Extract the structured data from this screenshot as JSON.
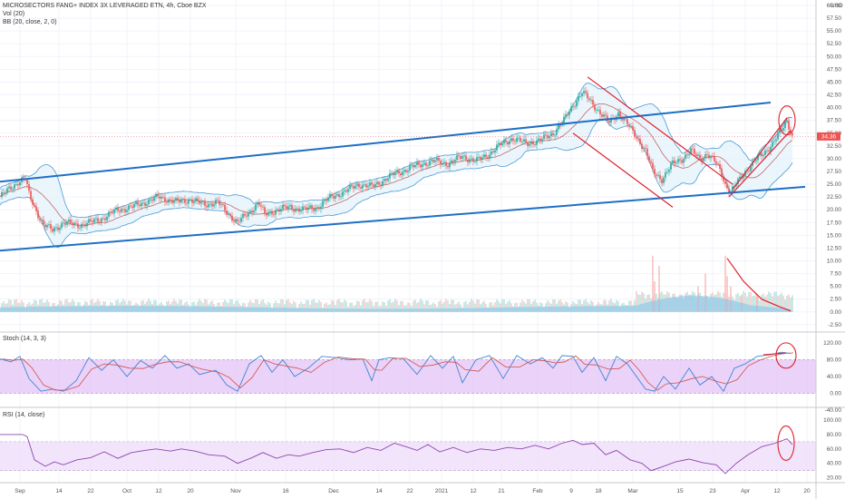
{
  "header": {
    "title": "MICROSECTORS FANG+ INDEX 3X LEVERAGED ETN, 4h, Cboe BZX",
    "vol_label": "Vol (20)",
    "bb_label": "BB (20, close, 2, 0)",
    "currency": "USD"
  },
  "stoch_label": "Stoch (14, 3, 3)",
  "rsi_label": "RSI (14, close)",
  "last_price": "34.36",
  "colors": {
    "up": "#26a69a",
    "down": "#ef5350",
    "channel": "#1e6fc5",
    "annotation": "#e0212b",
    "bb": "#4a9bd5",
    "ma": "#c46a6a",
    "stoch_k": "#3d86d6",
    "stoch_d": "#d1504a",
    "rsi": "#8e44ad",
    "band_fill": "#e3bff5",
    "volume_ma": "#7ec2ea"
  },
  "chart_data": {
    "type": "candlestick",
    "x_ticks": [
      "Sep",
      "14",
      "22",
      "Oct",
      "12",
      "20",
      "Nov",
      "16",
      "Dec",
      "14",
      "22",
      "2021",
      "12",
      "21",
      "Feb",
      "9",
      "18",
      "Mar",
      "15",
      "23",
      "Apr",
      "12",
      "20"
    ],
    "price_axis": [
      "60.00",
      "57.50",
      "55.00",
      "52.50",
      "50.00",
      "47.50",
      "45.00",
      "42.50",
      "40.00",
      "37.50",
      "35.00",
      "32.50",
      "30.00",
      "27.50",
      "25.00",
      "22.50",
      "20.00",
      "17.50",
      "15.00",
      "12.50",
      "10.00",
      "7.50",
      "5.00",
      "2.50",
      "0.00",
      "-2.50"
    ],
    "stoch_axis": [
      "120.00",
      "80.00",
      "40.00",
      "0.00",
      "-40.00"
    ],
    "rsi_axis": [
      "100.00",
      "80.00",
      "60.00",
      "40.00",
      "20.00"
    ],
    "price_path": [
      [
        0,
        22.5
      ],
      [
        10,
        24
      ],
      [
        20,
        25.5
      ],
      [
        28,
        26
      ],
      [
        32,
        23
      ],
      [
        38,
        20.5
      ],
      [
        48,
        17
      ],
      [
        58,
        16
      ],
      [
        70,
        17.5
      ],
      [
        85,
        17
      ],
      [
        100,
        17.5
      ],
      [
        115,
        18.5
      ],
      [
        130,
        20
      ],
      [
        145,
        20.5
      ],
      [
        160,
        21.5
      ],
      [
        175,
        22.5
      ],
      [
        185,
        22
      ],
      [
        195,
        21.5
      ],
      [
        210,
        22
      ],
      [
        225,
        21
      ],
      [
        240,
        21.5
      ],
      [
        250,
        19.5
      ],
      [
        262,
        17.5
      ],
      [
        275,
        19.5
      ],
      [
        285,
        21.5
      ],
      [
        292,
        19
      ],
      [
        305,
        20
      ],
      [
        320,
        20.5
      ],
      [
        335,
        20
      ],
      [
        350,
        20.5
      ],
      [
        365,
        22.5
      ],
      [
        380,
        23.5
      ],
      [
        395,
        25
      ],
      [
        410,
        24.5
      ],
      [
        420,
        25.5
      ],
      [
        435,
        27
      ],
      [
        450,
        28
      ],
      [
        465,
        29
      ],
      [
        480,
        29.5
      ],
      [
        495,
        29
      ],
      [
        510,
        30.5
      ],
      [
        525,
        29.5
      ],
      [
        540,
        31
      ],
      [
        550,
        32.5
      ],
      [
        565,
        34
      ],
      [
        580,
        33
      ],
      [
        595,
        33.5
      ],
      [
        610,
        35
      ],
      [
        622,
        37.5
      ],
      [
        632,
        40.5
      ],
      [
        642,
        43
      ],
      [
        650,
        41.5
      ],
      [
        662,
        39
      ],
      [
        672,
        37
      ],
      [
        682,
        39
      ],
      [
        695,
        36
      ],
      [
        705,
        33.5
      ],
      [
        712,
        31.5
      ],
      [
        720,
        27.5
      ],
      [
        730,
        26
      ],
      [
        742,
        29
      ],
      [
        752,
        30
      ],
      [
        762,
        31.5
      ],
      [
        772,
        30
      ],
      [
        780,
        31
      ],
      [
        790,
        29
      ],
      [
        795,
        27.5
      ],
      [
        800,
        25
      ],
      [
        806,
        23.5
      ],
      [
        812,
        25
      ],
      [
        822,
        27.5
      ],
      [
        832,
        29.5
      ],
      [
        842,
        31
      ],
      [
        852,
        33
      ],
      [
        862,
        35.5
      ],
      [
        868,
        37.5
      ],
      [
        874,
        34.36
      ]
    ],
    "channel_upper": [
      [
        0,
        25.5
      ],
      [
        850,
        41
      ]
    ],
    "channel_lower": [
      [
        0,
        12
      ],
      [
        888,
        24.5
      ]
    ],
    "down_channel_upper": [
      [
        648,
        46
      ],
      [
        808,
        25
      ]
    ],
    "down_channel_lower": [
      [
        632,
        35
      ],
      [
        742,
        20.5
      ]
    ],
    "rising_wedge_upper": [
      [
        808,
        24
      ],
      [
        868,
        38
      ]
    ],
    "rising_wedge_lower": [
      [
        804,
        22.5
      ],
      [
        872,
        35.5
      ]
    ],
    "volume_spikes": [
      [
        720,
        11
      ],
      [
        722,
        6
      ],
      [
        727,
        9
      ],
      [
        770,
        5
      ],
      [
        778,
        7.5
      ],
      [
        800,
        11
      ],
      [
        802,
        7
      ],
      [
        806,
        5
      ],
      [
        818,
        3
      ],
      [
        835,
        3
      ]
    ],
    "volume_trend": [
      [
        802,
        10.5
      ],
      [
        820,
        6
      ],
      [
        840,
        2.5
      ],
      [
        860,
        1
      ],
      [
        872,
        0.2
      ]
    ],
    "stoch_band": [
      0,
      80
    ],
    "stoch_k": [
      [
        0,
        82
      ],
      [
        12,
        75
      ],
      [
        22,
        88
      ],
      [
        32,
        35
      ],
      [
        45,
        5
      ],
      [
        58,
        10
      ],
      [
        70,
        5
      ],
      [
        84,
        30
      ],
      [
        98,
        85
      ],
      [
        112,
        55
      ],
      [
        125,
        80
      ],
      [
        140,
        40
      ],
      [
        155,
        78
      ],
      [
        168,
        60
      ],
      [
        182,
        90
      ],
      [
        195,
        60
      ],
      [
        208,
        70
      ],
      [
        220,
        45
      ],
      [
        238,
        55
      ],
      [
        250,
        20
      ],
      [
        262,
        5
      ],
      [
        275,
        70
      ],
      [
        288,
        90
      ],
      [
        300,
        50
      ],
      [
        312,
        80
      ],
      [
        325,
        40
      ],
      [
        340,
        60
      ],
      [
        355,
        88
      ],
      [
        370,
        85
      ],
      [
        385,
        80
      ],
      [
        400,
        82
      ],
      [
        410,
        30
      ],
      [
        418,
        80
      ],
      [
        430,
        85
      ],
      [
        445,
        82
      ],
      [
        460,
        45
      ],
      [
        475,
        90
      ],
      [
        488,
        60
      ],
      [
        500,
        88
      ],
      [
        510,
        25
      ],
      [
        525,
        80
      ],
      [
        540,
        90
      ],
      [
        555,
        35
      ],
      [
        570,
        90
      ],
      [
        585,
        70
      ],
      [
        598,
        85
      ],
      [
        610,
        60
      ],
      [
        620,
        90
      ],
      [
        632,
        88
      ],
      [
        642,
        50
      ],
      [
        655,
        85
      ],
      [
        668,
        30
      ],
      [
        680,
        88
      ],
      [
        692,
        70
      ],
      [
        702,
        40
      ],
      [
        712,
        10
      ],
      [
        722,
        5
      ],
      [
        732,
        40
      ],
      [
        745,
        10
      ],
      [
        760,
        60
      ],
      [
        772,
        20
      ],
      [
        785,
        40
      ],
      [
        798,
        5
      ],
      [
        810,
        60
      ],
      [
        822,
        70
      ],
      [
        835,
        88
      ],
      [
        850,
        92
      ],
      [
        862,
        98
      ],
      [
        872,
        95
      ]
    ],
    "rsi_band": [
      30,
      70
    ],
    "rsi_line": [
      [
        0,
        80
      ],
      [
        25,
        80
      ],
      [
        30,
        77
      ],
      [
        38,
        45
      ],
      [
        50,
        36
      ],
      [
        60,
        42
      ],
      [
        70,
        38
      ],
      [
        85,
        45
      ],
      [
        100,
        48
      ],
      [
        115,
        56
      ],
      [
        130,
        47
      ],
      [
        145,
        55
      ],
      [
        160,
        58
      ],
      [
        172,
        60
      ],
      [
        188,
        57
      ],
      [
        200,
        60
      ],
      [
        215,
        57
      ],
      [
        230,
        52
      ],
      [
        248,
        50
      ],
      [
        262,
        40
      ],
      [
        278,
        48
      ],
      [
        290,
        55
      ],
      [
        305,
        47
      ],
      [
        318,
        52
      ],
      [
        330,
        50
      ],
      [
        345,
        55
      ],
      [
        360,
        59
      ],
      [
        375,
        60
      ],
      [
        390,
        55
      ],
      [
        405,
        62
      ],
      [
        420,
        58
      ],
      [
        435,
        68
      ],
      [
        448,
        63
      ],
      [
        460,
        58
      ],
      [
        472,
        66
      ],
      [
        485,
        56
      ],
      [
        500,
        62
      ],
      [
        515,
        55
      ],
      [
        530,
        60
      ],
      [
        545,
        58
      ],
      [
        560,
        62
      ],
      [
        575,
        60
      ],
      [
        590,
        65
      ],
      [
        605,
        60
      ],
      [
        620,
        68
      ],
      [
        632,
        72
      ],
      [
        642,
        66
      ],
      [
        655,
        68
      ],
      [
        668,
        52
      ],
      [
        680,
        58
      ],
      [
        695,
        45
      ],
      [
        708,
        40
      ],
      [
        718,
        30
      ],
      [
        730,
        35
      ],
      [
        745,
        42
      ],
      [
        760,
        46
      ],
      [
        775,
        41
      ],
      [
        790,
        38
      ],
      [
        800,
        26
      ],
      [
        812,
        40
      ],
      [
        825,
        52
      ],
      [
        840,
        63
      ],
      [
        855,
        68
      ],
      [
        868,
        74
      ],
      [
        874,
        66
      ]
    ]
  }
}
